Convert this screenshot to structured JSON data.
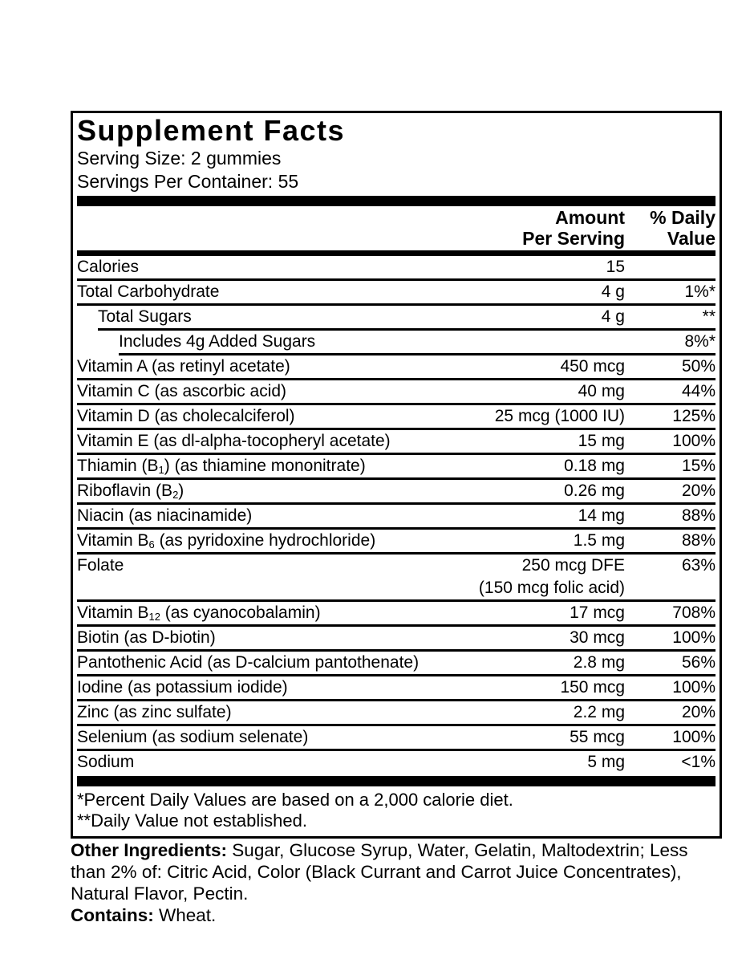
{
  "panel": {
    "title": "Supplement Facts",
    "serving_size": "Serving Size: 2 gummies",
    "servings_per_container": "Servings Per Container: 55",
    "col_headers": {
      "amount_line1": "Amount",
      "amount_line2": "Per Serving",
      "dv_line1": "% Daily",
      "dv_line2": "Value"
    },
    "footnote1": "*Percent Daily Values are based on a 2,000 calorie diet.",
    "footnote2": "**Daily Value not established."
  },
  "table": {
    "rows": [
      {
        "label": [
          "Calories"
        ],
        "amount": [
          "15"
        ],
        "dv": "",
        "indent": 0
      },
      {
        "label": [
          "Total Carbohydrate"
        ],
        "amount": [
          "4 g"
        ],
        "dv": "1%*",
        "indent": 0
      },
      {
        "label": [
          "Total Sugars"
        ],
        "amount": [
          "4 g"
        ],
        "dv": "**",
        "indent": 1
      },
      {
        "label": [
          "Includes 4g Added Sugars"
        ],
        "amount": [],
        "dv": "8%*",
        "indent": 2
      },
      {
        "label": [
          "Vitamin A (as retinyl acetate)"
        ],
        "amount": [
          "450 mcg"
        ],
        "dv": "50%",
        "indent": 0
      },
      {
        "label": [
          "Vitamin C (as ascorbic acid)"
        ],
        "amount": [
          "40 mg"
        ],
        "dv": "44%",
        "indent": 0
      },
      {
        "label": [
          "Vitamin D (as cholecalciferol)"
        ],
        "amount": [
          "25 mcg (1000 IU)"
        ],
        "dv": "125%",
        "indent": 0
      },
      {
        "label": [
          "Vitamin E (as dl-alpha-tocopheryl acetate)"
        ],
        "amount": [
          "15 mg"
        ],
        "dv": "100%",
        "indent": 0
      },
      {
        "label": [
          "Thiamin (B",
          "_1",
          ") (as thiamine mononitrate)"
        ],
        "amount": [
          "0.18 mg"
        ],
        "dv": "15%",
        "indent": 0
      },
      {
        "label": [
          "Riboflavin (B",
          "_2",
          ")"
        ],
        "amount": [
          "0.26 mg"
        ],
        "dv": "20%",
        "indent": 0
      },
      {
        "label": [
          "Niacin (as niacinamide)"
        ],
        "amount": [
          "14 mg"
        ],
        "dv": "88%",
        "indent": 0
      },
      {
        "label": [
          "Vitamin B",
          "_6",
          " (as pyridoxine hydrochloride)"
        ],
        "amount": [
          "1.5 mg"
        ],
        "dv": "88%",
        "indent": 0
      },
      {
        "label": [
          "Folate"
        ],
        "amount": [
          "250 mcg DFE",
          "(150 mcg folic acid)"
        ],
        "dv": "63%",
        "indent": 0
      },
      {
        "label": [
          "Vitamin B",
          "_12",
          " (as cyanocobalamin)"
        ],
        "amount": [
          "17 mcg"
        ],
        "dv": "708%",
        "indent": 0
      },
      {
        "label": [
          "Biotin (as D-biotin)"
        ],
        "amount": [
          "30 mcg"
        ],
        "dv": "100%",
        "indent": 0
      },
      {
        "label": [
          "Pantothenic Acid (as D-calcium pantothenate)"
        ],
        "amount": [
          "2.8 mg"
        ],
        "dv": "56%",
        "indent": 0
      },
      {
        "label": [
          "Iodine (as potassium iodide)"
        ],
        "amount": [
          "150 mcg"
        ],
        "dv": "100%",
        "indent": 0
      },
      {
        "label": [
          "Zinc (as zinc sulfate)"
        ],
        "amount": [
          "2.2 mg"
        ],
        "dv": "20%",
        "indent": 0
      },
      {
        "label": [
          "Selenium (as sodium selenate)"
        ],
        "amount": [
          "55 mcg"
        ],
        "dv": "100%",
        "indent": 0
      },
      {
        "label": [
          "Sodium"
        ],
        "amount": [
          "5 mg"
        ],
        "dv": "<1%",
        "indent": 0
      }
    ]
  },
  "other": {
    "ingredients_label": "Other Ingredients:",
    "ingredients_text": "Sugar, Glucose Syrup, Water, Gelatin, Maltodextrin; Less than 2% of: Citric Acid, Color (Black Currant and Carrot Juice Concentrates), Natural Flavor, Pectin.",
    "contains_label": "Contains:",
    "contains_text": "Wheat."
  },
  "colors": {
    "text": "#000000",
    "background": "#ffffff"
  }
}
